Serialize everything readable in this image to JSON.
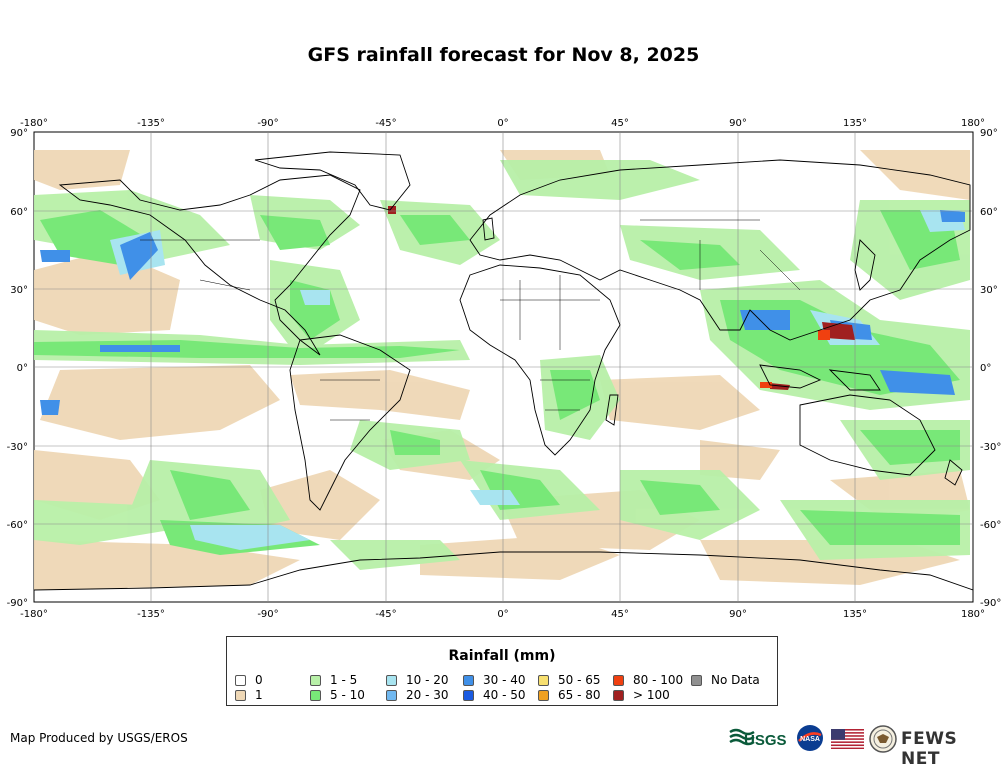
{
  "title": "GFS rainfall forecast for Nov 8, 2025",
  "map": {
    "lon_labels": [
      "-180°",
      "-135°",
      "-90°",
      "-45°",
      "0°",
      "45°",
      "90°",
      "135°",
      "180°"
    ],
    "lat_labels": [
      "90°",
      "60°",
      "30°",
      "0°",
      "-30°",
      "-60°",
      "-90°"
    ],
    "colors": {
      "land_outline": "#000000",
      "grid": "#888888",
      "c0": "#ffffff",
      "c1": "#efd8b6",
      "c1_5": "#b8f0a8",
      "c5_10": "#78e878",
      "c10_20": "#a8e4f0",
      "c20_30": "#70b8f0",
      "c30_40": "#4090e8",
      "c40_50": "#1a5ae0",
      "c50_65": "#f8e070",
      "c65_80": "#f0a020",
      "c80_100": "#f04010",
      "c100": "#a02020",
      "nodata": "#909090"
    }
  },
  "legend": {
    "title": "Rainfall (mm)",
    "items": [
      {
        "label": "0",
        "color": "#ffffff"
      },
      {
        "label": "1",
        "color": "#efd8b6"
      },
      {
        "label": "1 - 5",
        "color": "#b8f0a8"
      },
      {
        "label": "5 - 10",
        "color": "#78e878"
      },
      {
        "label": "10 - 20",
        "color": "#a8e4f0"
      },
      {
        "label": "20 - 30",
        "color": "#70b8f0"
      },
      {
        "label": "30 - 40",
        "color": "#4090e8"
      },
      {
        "label": "40 - 50",
        "color": "#1a5ae0"
      },
      {
        "label": "50 - 65",
        "color": "#f8e070"
      },
      {
        "label": "65 - 80",
        "color": "#f0a020"
      },
      {
        "label": "80 - 100",
        "color": "#f04010"
      },
      {
        "label": "> 100",
        "color": "#a02020"
      },
      {
        "label": "No Data",
        "color": "#909090"
      }
    ]
  },
  "footer": {
    "credit": "Map Produced by USGS/EROS",
    "logo_usgs": "USGS",
    "logo_nasa": "NASA",
    "logo_fews": "FEWS NET"
  }
}
